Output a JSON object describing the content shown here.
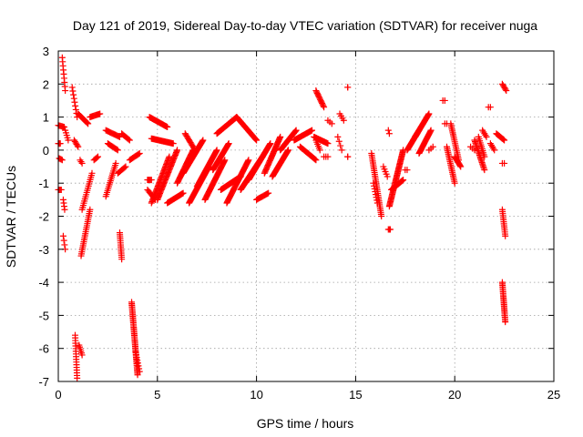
{
  "chart_data": {
    "type": "scatter",
    "title": "Day 121 of 2019, Sidereal Day-to-day VTEC variation (SDTVAR) for receiver nuga",
    "xlabel": "GPS time / hours",
    "ylabel": "SDTVAR / TECUs",
    "xlim": [
      0,
      25
    ],
    "ylim": [
      -7,
      3
    ],
    "xticks": [
      "0",
      "5",
      "10",
      "15",
      "20",
      "25"
    ],
    "yticks": [
      "3",
      "2",
      "1",
      "0",
      "-1",
      "-2",
      "-3",
      "-4",
      "-5",
      "-6",
      "-7"
    ],
    "grid": true,
    "marker": "plus",
    "marker_color": "#ff0000",
    "segments": [
      {
        "x0": 0.0,
        "x1": 0.1,
        "y0": 0.2,
        "y1": 0.2,
        "step": 0.03
      },
      {
        "x0": 0.0,
        "x1": 0.3,
        "y0": 0.75,
        "y1": 0.7,
        "step": 0.05
      },
      {
        "x0": 0.0,
        "x1": 0.15,
        "y0": -1.2,
        "y1": -1.2,
        "step": 0.05
      },
      {
        "x0": 0.05,
        "x1": 0.2,
        "y0": -0.25,
        "y1": -0.3,
        "step": 0.05
      },
      {
        "x0": 0.2,
        "x1": 0.35,
        "y0": 2.8,
        "y1": 1.8,
        "step": 0.03
      },
      {
        "x0": 0.25,
        "x1": 0.32,
        "y0": -1.5,
        "y1": -1.8,
        "step": 0.03
      },
      {
        "x0": 0.25,
        "x1": 0.35,
        "y0": -2.6,
        "y1": -3.0,
        "step": 0.03
      },
      {
        "x0": 0.35,
        "x1": 0.5,
        "y0": 0.6,
        "y1": 0.3,
        "step": 0.04
      },
      {
        "x0": 0.7,
        "x1": 0.95,
        "y0": 1.9,
        "y1": 1.0,
        "step": 0.03
      },
      {
        "x0": 0.8,
        "x1": 1.0,
        "y0": 0.3,
        "y1": 0.1,
        "step": 0.04
      },
      {
        "x0": 0.85,
        "x1": 0.95,
        "y0": -5.6,
        "y1": -6.9,
        "step": 0.02
      },
      {
        "x0": 1.05,
        "x1": 1.2,
        "y0": -5.9,
        "y1": -6.2,
        "step": 0.03
      },
      {
        "x0": 1.0,
        "x1": 1.5,
        "y0": 1.1,
        "y1": 0.8,
        "step": 0.04
      },
      {
        "x0": 1.1,
        "x1": 1.2,
        "y0": -0.3,
        "y1": -0.4,
        "step": 0.04
      },
      {
        "x0": 1.15,
        "x1": 1.6,
        "y0": -3.2,
        "y1": -1.8,
        "step": 0.02
      },
      {
        "x0": 1.2,
        "x1": 1.7,
        "y0": -1.8,
        "y1": -0.7,
        "step": 0.03
      },
      {
        "x0": 1.6,
        "x1": 2.1,
        "y0": 1.0,
        "y1": 1.1,
        "step": 0.05
      },
      {
        "x0": 1.8,
        "x1": 2.0,
        "y0": -0.3,
        "y1": -0.2,
        "step": 0.05
      },
      {
        "x0": 2.4,
        "x1": 3.1,
        "y0": 0.6,
        "y1": 0.4,
        "step": 0.05
      },
      {
        "x0": 2.4,
        "x1": 2.9,
        "y0": -1.4,
        "y1": -0.4,
        "step": 0.03
      },
      {
        "x0": 2.5,
        "x1": 3.0,
        "y0": 0.2,
        "y1": 0.0,
        "step": 0.05
      },
      {
        "x0": 3.1,
        "x1": 3.2,
        "y0": -2.5,
        "y1": -3.3,
        "step": 0.015
      },
      {
        "x0": 3.0,
        "x1": 3.4,
        "y0": -0.7,
        "y1": -0.5,
        "step": 0.05
      },
      {
        "x0": 3.2,
        "x1": 3.6,
        "y0": 0.5,
        "y1": 0.3,
        "step": 0.05
      },
      {
        "x0": 3.6,
        "x1": 4.1,
        "y0": -0.3,
        "y1": -0.1,
        "step": 0.05
      },
      {
        "x0": 3.7,
        "x1": 4.0,
        "y0": -4.6,
        "y1": -6.8,
        "step": 0.012
      },
      {
        "x0": 3.9,
        "x1": 4.1,
        "y0": -6.1,
        "y1": -6.7,
        "step": 0.03
      },
      {
        "x0": 4.5,
        "x1": 4.7,
        "y0": -0.9,
        "y1": -0.9,
        "step": 0.05
      },
      {
        "x0": 4.5,
        "x1": 4.9,
        "y0": -1.2,
        "y1": -1.5,
        "step": 0.05
      },
      {
        "x0": 4.6,
        "x1": 5.5,
        "y0": 1.0,
        "y1": 0.7,
        "step": 0.04
      },
      {
        "x0": 4.7,
        "x1": 5.8,
        "y0": 0.35,
        "y1": 0.2,
        "step": 0.04
      },
      {
        "x0": 4.7,
        "x1": 5.6,
        "y0": -1.6,
        "y1": -0.2,
        "step": 0.025
      },
      {
        "x0": 5.0,
        "x1": 6.0,
        "y0": -1.5,
        "y1": 0.0,
        "step": 0.025
      },
      {
        "x0": 5.5,
        "x1": 6.3,
        "y0": -1.6,
        "y1": -1.3,
        "step": 0.04
      },
      {
        "x0": 6.0,
        "x1": 6.8,
        "y0": -1.0,
        "y1": 0.0,
        "step": 0.025
      },
      {
        "x0": 6.3,
        "x1": 7.3,
        "y0": -0.7,
        "y1": 0.3,
        "step": 0.025
      },
      {
        "x0": 6.4,
        "x1": 6.9,
        "y0": 0.5,
        "y1": 0.0,
        "step": 0.04
      },
      {
        "x0": 6.6,
        "x1": 7.6,
        "y0": -1.6,
        "y1": -0.5,
        "step": 0.025
      },
      {
        "x0": 7.0,
        "x1": 8.0,
        "y0": -1.1,
        "y1": 0.0,
        "step": 0.025
      },
      {
        "x0": 7.4,
        "x1": 8.4,
        "y0": -1.5,
        "y1": -0.3,
        "step": 0.025
      },
      {
        "x0": 7.8,
        "x1": 8.6,
        "y0": -0.6,
        "y1": 0.2,
        "step": 0.025
      },
      {
        "x0": 8.0,
        "x1": 9.0,
        "y0": 0.5,
        "y1": 1.0,
        "step": 0.03
      },
      {
        "x0": 8.2,
        "x1": 9.2,
        "y0": -1.2,
        "y1": -0.8,
        "step": 0.03
      },
      {
        "x0": 8.5,
        "x1": 9.6,
        "y0": -1.6,
        "y1": -0.3,
        "step": 0.025
      },
      {
        "x0": 9.0,
        "x1": 10.0,
        "y0": 1.0,
        "y1": 0.3,
        "step": 0.03
      },
      {
        "x0": 9.2,
        "x1": 10.3,
        "y0": -1.2,
        "y1": -0.2,
        "step": 0.025
      },
      {
        "x0": 9.6,
        "x1": 10.7,
        "y0": -0.9,
        "y1": 0.2,
        "step": 0.025
      },
      {
        "x0": 10.0,
        "x1": 10.6,
        "y0": -1.5,
        "y1": -1.3,
        "step": 0.05
      },
      {
        "x0": 10.4,
        "x1": 11.2,
        "y0": -0.7,
        "y1": 0.4,
        "step": 0.025
      },
      {
        "x0": 10.8,
        "x1": 11.6,
        "y0": -0.8,
        "y1": 0.0,
        "step": 0.025
      },
      {
        "x0": 11.2,
        "x1": 12.0,
        "y0": 0.0,
        "y1": 0.6,
        "step": 0.03
      },
      {
        "x0": 11.9,
        "x1": 12.8,
        "y0": 0.3,
        "y1": 0.6,
        "step": 0.04
      },
      {
        "x0": 12.2,
        "x1": 13.0,
        "y0": 0.1,
        "y1": -0.3,
        "step": 0.04
      },
      {
        "x0": 12.9,
        "x1": 13.6,
        "y0": 0.4,
        "y1": 0.2,
        "step": 0.04
      },
      {
        "x0": 13.0,
        "x1": 13.2,
        "y0": 0.3,
        "y1": 0.0,
        "step": 0.04
      },
      {
        "x0": 13.0,
        "x1": 13.4,
        "y0": 1.8,
        "y1": 1.3,
        "step": 0.03
      },
      {
        "x0": 13.6,
        "x1": 13.8,
        "y0": 0.9,
        "y1": 0.8,
        "step": 0.1
      },
      {
        "x0": 13.4,
        "x1": 13.6,
        "y0": -0.2,
        "y1": -0.2,
        "step": 0.1
      },
      {
        "x0": 14.2,
        "x1": 14.4,
        "y0": 1.1,
        "y1": 0.9,
        "step": 0.08
      },
      {
        "x0": 14.1,
        "x1": 14.3,
        "y0": 0.4,
        "y1": 0.0,
        "step": 0.06
      },
      {
        "x0": 14.6,
        "x1": 14.6,
        "y0": 1.9,
        "y1": 1.9,
        "step": 0.1
      },
      {
        "x0": 14.6,
        "x1": 14.6,
        "y0": -0.2,
        "y1": -0.2,
        "step": 0.1
      },
      {
        "x0": 15.8,
        "x1": 16.3,
        "y0": -0.1,
        "y1": -2.0,
        "step": 0.015
      },
      {
        "x0": 15.9,
        "x1": 16.1,
        "y0": -1.0,
        "y1": -1.6,
        "step": 0.03
      },
      {
        "x0": 16.4,
        "x1": 16.6,
        "y0": -0.5,
        "y1": -0.8,
        "step": 0.05
      },
      {
        "x0": 16.65,
        "x1": 16.7,
        "y0": 0.6,
        "y1": 0.5,
        "step": 0.05
      },
      {
        "x0": 16.65,
        "x1": 16.75,
        "y0": -2.4,
        "y1": -2.4,
        "step": 0.05
      },
      {
        "x0": 16.7,
        "x1": 17.4,
        "y0": -1.7,
        "y1": 0.0,
        "step": 0.015
      },
      {
        "x0": 16.8,
        "x1": 17.4,
        "y0": -1.2,
        "y1": -0.9,
        "step": 0.03
      },
      {
        "x0": 17.5,
        "x1": 17.6,
        "y0": -0.6,
        "y1": -0.6,
        "step": 0.1
      },
      {
        "x0": 17.6,
        "x1": 18.2,
        "y0": 0.0,
        "y1": 0.6,
        "step": 0.025
      },
      {
        "x0": 18.0,
        "x1": 18.7,
        "y0": 0.4,
        "y1": 1.1,
        "step": 0.025
      },
      {
        "x0": 18.2,
        "x1": 18.8,
        "y0": -0.1,
        "y1": 0.6,
        "step": 0.025
      },
      {
        "x0": 18.7,
        "x1": 18.9,
        "y0": 0.0,
        "y1": 0.1,
        "step": 0.1
      },
      {
        "x0": 19.4,
        "x1": 19.5,
        "y0": 1.5,
        "y1": 1.5,
        "step": 0.1
      },
      {
        "x0": 19.5,
        "x1": 19.6,
        "y0": 0.8,
        "y1": 0.8,
        "step": 0.1
      },
      {
        "x0": 19.6,
        "x1": 20.0,
        "y0": 0.1,
        "y1": -1.0,
        "step": 0.02
      },
      {
        "x0": 19.8,
        "x1": 20.2,
        "y0": 0.8,
        "y1": -0.3,
        "step": 0.02
      },
      {
        "x0": 20.0,
        "x1": 20.3,
        "y0": -0.2,
        "y1": -0.5,
        "step": 0.03
      },
      {
        "x0": 20.8,
        "x1": 21.0,
        "y0": 0.1,
        "y1": 0.0,
        "step": 0.1
      },
      {
        "x0": 21.0,
        "x1": 21.5,
        "y0": 0.3,
        "y1": -0.6,
        "step": 0.025
      },
      {
        "x0": 21.2,
        "x1": 21.5,
        "y0": 0.4,
        "y1": -0.2,
        "step": 0.03
      },
      {
        "x0": 21.4,
        "x1": 21.6,
        "y0": 0.6,
        "y1": 0.4,
        "step": 0.05
      },
      {
        "x0": 21.7,
        "x1": 21.8,
        "y0": 1.3,
        "y1": 1.3,
        "step": 0.1
      },
      {
        "x0": 21.8,
        "x1": 22.0,
        "y0": 0.2,
        "y1": 0.0,
        "step": 0.05
      },
      {
        "x0": 22.1,
        "x1": 22.5,
        "y0": 0.5,
        "y1": 0.3,
        "step": 0.04
      },
      {
        "x0": 22.4,
        "x1": 22.5,
        "y0": -0.4,
        "y1": -0.4,
        "step": 0.1
      },
      {
        "x0": 22.4,
        "x1": 22.6,
        "y0": 2.0,
        "y1": 1.8,
        "step": 0.04
      },
      {
        "x0": 22.4,
        "x1": 22.55,
        "y0": -1.8,
        "y1": -2.6,
        "step": 0.015
      },
      {
        "x0": 22.4,
        "x1": 22.55,
        "y0": -4.0,
        "y1": -5.2,
        "step": 0.012
      }
    ]
  }
}
